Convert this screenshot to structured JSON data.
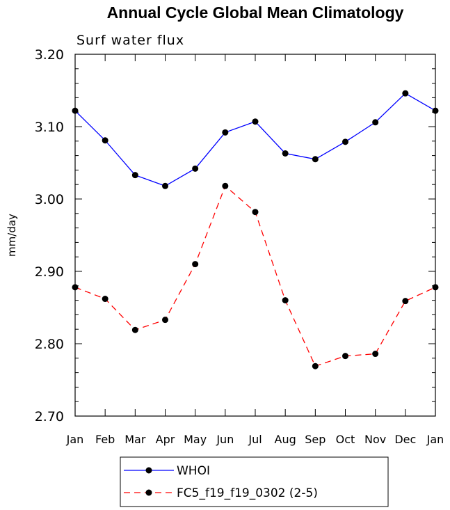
{
  "chart_data": {
    "type": "line",
    "title": "Annual Cycle Global Mean Climatology",
    "subtitle": "Surf water flux",
    "xlabel": "",
    "ylabel": "mm/day",
    "categories": [
      "Jan",
      "Feb",
      "Mar",
      "Apr",
      "May",
      "Jun",
      "Jul",
      "Aug",
      "Sep",
      "Oct",
      "Nov",
      "Dec",
      "Jan"
    ],
    "ylim": [
      2.7,
      3.2
    ],
    "yticks": [
      "2.70",
      "2.80",
      "2.90",
      "3.00",
      "3.10",
      "3.20"
    ],
    "grid": false,
    "legend_position": "bottom",
    "series": [
      {
        "name": "WHOI",
        "color": "#0000ff",
        "dash": "solid",
        "marker": "filled-circle",
        "values": [
          3.122,
          3.081,
          3.033,
          3.018,
          3.042,
          3.092,
          3.107,
          3.063,
          3.055,
          3.079,
          3.106,
          3.146,
          3.122
        ]
      },
      {
        "name": "FC5_f19_f19_0302 (2-5)",
        "color": "#ff0000",
        "dash": "dashed",
        "marker": "filled-circle",
        "values": [
          2.878,
          2.862,
          2.819,
          2.833,
          2.91,
          3.018,
          2.982,
          2.86,
          2.769,
          2.783,
          2.786,
          2.859,
          2.878
        ]
      }
    ]
  }
}
